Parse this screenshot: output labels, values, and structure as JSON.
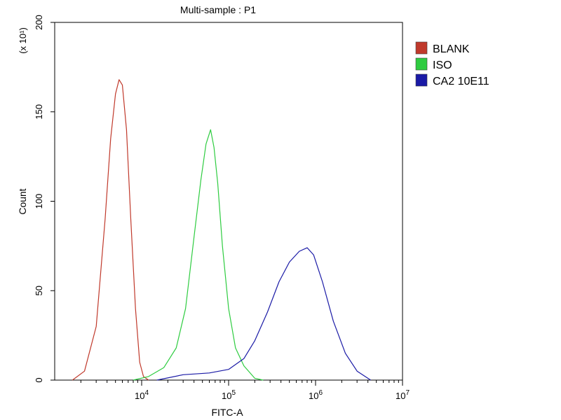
{
  "chart_data": {
    "type": "line",
    "title": "Multi-sample : P1",
    "xlabel": "FITC-A",
    "ylabel": "Count",
    "y_multiplier_label": "(x 10¹)",
    "x_scale": "log",
    "xlim": [
      1000,
      10000000
    ],
    "ylim": [
      0,
      200
    ],
    "x_ticks": [
      {
        "value": 10000,
        "base": "10",
        "exp": "4"
      },
      {
        "value": 100000,
        "base": "10",
        "exp": "5"
      },
      {
        "value": 1000000,
        "base": "10",
        "exp": "6"
      },
      {
        "value": 10000000,
        "base": "10",
        "exp": "7"
      }
    ],
    "y_ticks": [
      0,
      50,
      100,
      150,
      200
    ],
    "grid": false,
    "legend_position": "right",
    "series": [
      {
        "name": "BLANK",
        "color": "#c0392b",
        "x": [
          1600,
          2200,
          3000,
          3800,
          4400,
          5000,
          5500,
          6000,
          6700,
          7500,
          8500,
          9500,
          10500,
          12000
        ],
        "y": [
          0,
          5,
          30,
          90,
          135,
          160,
          168,
          165,
          140,
          90,
          40,
          10,
          2,
          0
        ]
      },
      {
        "name": "ISO",
        "color": "#2ecc40",
        "x": [
          8000,
          12000,
          18000,
          25000,
          32000,
          40000,
          48000,
          55000,
          62000,
          68000,
          75000,
          85000,
          100000,
          120000,
          150000,
          200000,
          250000
        ],
        "y": [
          0,
          2,
          7,
          18,
          40,
          80,
          112,
          132,
          140,
          130,
          110,
          75,
          40,
          18,
          8,
          1,
          0
        ]
      },
      {
        "name": "CA2 10E11",
        "color": "#1a1aa6",
        "x": [
          15000,
          30000,
          60000,
          100000,
          150000,
          200000,
          280000,
          380000,
          500000,
          650000,
          800000,
          950000,
          1200000,
          1600000,
          2200000,
          3000000,
          4300000
        ],
        "y": [
          0,
          3,
          4,
          6,
          12,
          22,
          38,
          55,
          66,
          72,
          74,
          70,
          55,
          33,
          15,
          5,
          0
        ]
      }
    ]
  }
}
